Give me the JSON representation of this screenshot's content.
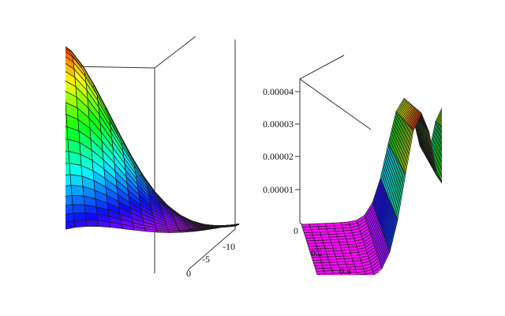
{
  "chart_data": [
    {
      "type": "surface",
      "panel": "left",
      "x_ticks": [
        "-10",
        "-5",
        "0"
      ],
      "coloring": "rainbow by height",
      "mesh_lines": true
    },
    {
      "type": "surface",
      "panel": "right",
      "z_ticks": [
        "0.00004",
        "0.00003",
        "0.00002",
        "0.00001",
        "0"
      ],
      "x_ticks": [
        "0.2",
        "0.4"
      ],
      "coloring": "rainbow by height",
      "mesh_lines": true
    }
  ]
}
